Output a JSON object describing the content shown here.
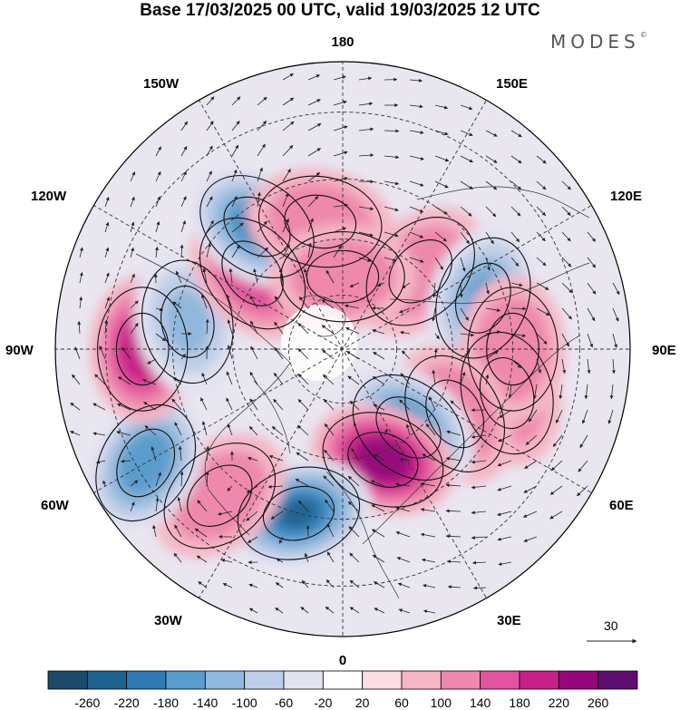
{
  "title": "Base 17/03/2025 00 UTC, valid 19/03/2025 12 UTC",
  "brand": "MODES",
  "brand_mark": "©",
  "longitude_labels": {
    "top": "180",
    "bottom": "0",
    "left": "90W",
    "right": "90E",
    "nw": "150W",
    "ne": "150E",
    "wnw": "120W",
    "ene": "120E",
    "sw": "30W",
    "se": "30E",
    "wsw": "60W",
    "ese": "60E"
  },
  "vector_reference": "30",
  "colorbar": {
    "colors": [
      "#1b4a6b",
      "#20628f",
      "#2f7ab2",
      "#5a9ccc",
      "#90b7dc",
      "#bfcde8",
      "#e3e3f0",
      "#ffffff",
      "#fbdde4",
      "#f5b6c6",
      "#ee88ac",
      "#e2549d",
      "#c72088",
      "#95087a",
      "#5e0f6f"
    ],
    "ticks": [
      "-260",
      "-220",
      "-180",
      "-140",
      "-100",
      "-60",
      "-20",
      "20",
      "60",
      "100",
      "140",
      "180",
      "220",
      "260"
    ]
  },
  "map_data": {
    "projection": "north-polar-stereographic",
    "field": "geopotential height anomaly",
    "anomaly_centers": [
      {
        "lon": 135,
        "lat": 60,
        "value": 100
      },
      {
        "lon": 110,
        "lat": 50,
        "value": -160
      },
      {
        "lon": 75,
        "lat": 45,
        "value": 120
      },
      {
        "lon": 90,
        "lat": 45,
        "value": 100
      },
      {
        "lon": 60,
        "lat": 55,
        "value": 120
      },
      {
        "lon": 40,
        "lat": 62,
        "value": -200
      },
      {
        "lon": 20,
        "lat": 58,
        "value": 220
      },
      {
        "lon": -15,
        "lat": 45,
        "value": -240
      },
      {
        "lon": -40,
        "lat": 40,
        "value": 120
      },
      {
        "lon": -60,
        "lat": 32,
        "value": -180
      },
      {
        "lon": -90,
        "lat": 38,
        "value": 180
      },
      {
        "lon": -100,
        "lat": 48,
        "value": -120
      },
      {
        "lon": -130,
        "lat": 58,
        "value": 140
      },
      {
        "lon": -145,
        "lat": 50,
        "value": -200
      },
      {
        "lon": -170,
        "lat": 55,
        "value": 120
      },
      {
        "lon": 180,
        "lat": 70,
        "value": 100
      }
    ]
  }
}
